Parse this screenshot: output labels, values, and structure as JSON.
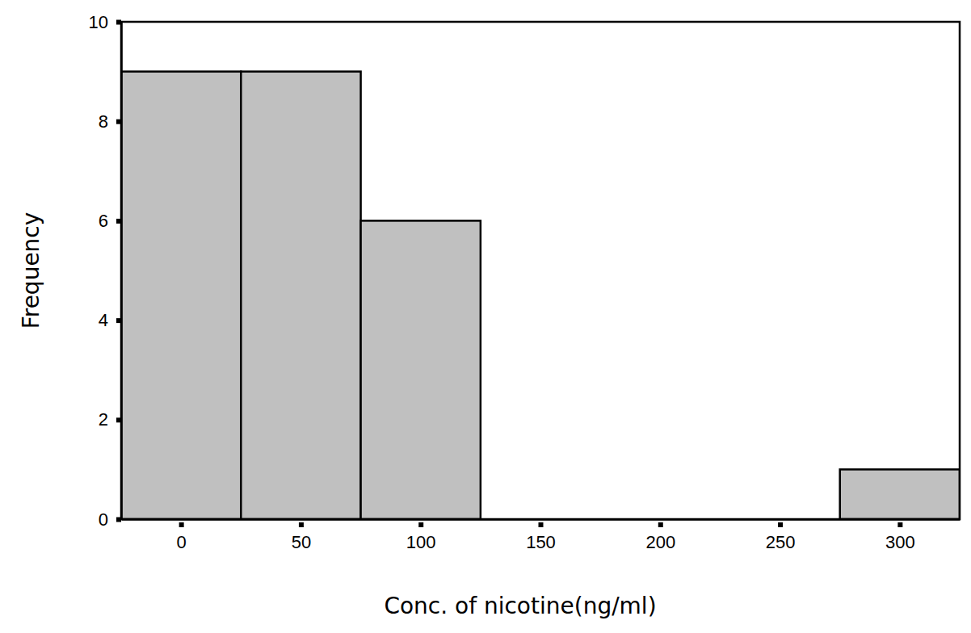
{
  "chart_data": {
    "type": "histogram",
    "bins": [
      -25,
      25,
      75,
      125,
      175,
      225,
      275,
      325
    ],
    "values": [
      9,
      9,
      6,
      0,
      0,
      0,
      1
    ],
    "color": "#c0c0c0",
    "x_label": "Conc. of nicotine(ng/ml)",
    "y_label": "Frequency",
    "xlim": [
      -25,
      325
    ],
    "xticks": [
      0,
      50,
      100,
      150,
      200,
      250,
      300
    ],
    "ylim": [
      0,
      10
    ],
    "yticks": [
      0,
      2,
      4,
      6,
      8,
      10
    ],
    "grid": false
  }
}
